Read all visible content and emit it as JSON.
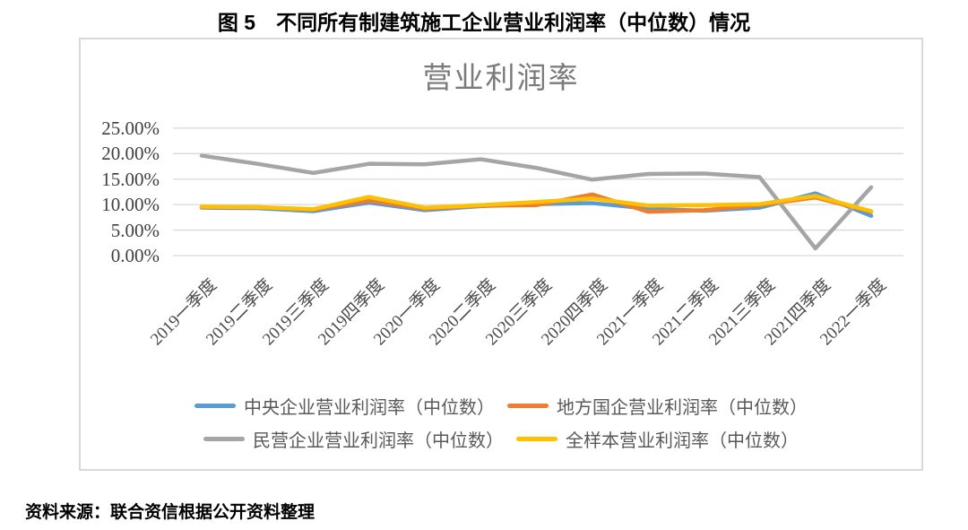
{
  "page": {
    "title": "图 5　不同所有制建筑施工企业营业利润率（中位数）情况",
    "source": "资料来源：联合资信根据公开资料整理"
  },
  "colors": {
    "frame_border": "#d9d9d9",
    "gridline": "#d9d9d9",
    "axis_text": "#3f3f3f",
    "legend_text": "#595959",
    "chart_title_text": "#7a7a7a"
  },
  "chart_data": {
    "type": "line",
    "title": "营业利润率",
    "categories": [
      "2019一季度",
      "2019二季度",
      "2019三季度",
      "2019四季度",
      "2020一季度",
      "2020二季度",
      "2020三季度",
      "2020四季度",
      "2021一季度",
      "2021二季度",
      "2021三季度",
      "2021四季度",
      "2022一季度"
    ],
    "series": [
      {
        "name": "中央企业营业利润率（中位数）",
        "color": "#5B9BD5",
        "values": [
          9.4,
          9.3,
          8.7,
          10.4,
          8.9,
          9.7,
          10.1,
          10.3,
          9.2,
          8.8,
          9.4,
          12.2,
          7.8
        ]
      },
      {
        "name": "地方国企营业利润率（中位数）",
        "color": "#ED7D31",
        "values": [
          9.5,
          9.5,
          9.0,
          10.8,
          9.2,
          9.8,
          9.9,
          12.0,
          8.6,
          8.9,
          9.9,
          11.4,
          8.6
        ]
      },
      {
        "name": "民营企业营业利润率（中位数）",
        "color": "#A5A5A5",
        "values": [
          19.6,
          18.0,
          16.2,
          18.0,
          17.9,
          18.9,
          17.2,
          14.9,
          16.0,
          16.1,
          15.4,
          1.4,
          13.4
        ]
      },
      {
        "name": "全样本营业利润率（中位数）",
        "color": "#FFC000",
        "values": [
          9.6,
          9.5,
          9.1,
          11.5,
          9.4,
          9.9,
          10.5,
          11.2,
          9.8,
          9.9,
          10.1,
          11.7,
          8.7
        ]
      }
    ],
    "ylabel": "",
    "xlabel": "",
    "ylim": [
      0,
      25
    ],
    "y_tick_step": 5,
    "y_tick_labels": [
      "0.00%",
      "5.00%",
      "10.00%",
      "15.00%",
      "20.00%",
      "25.00%"
    ],
    "grid": true,
    "legend_position": "bottom",
    "legend_rows": [
      [
        0,
        1
      ],
      [
        2,
        3
      ]
    ]
  }
}
